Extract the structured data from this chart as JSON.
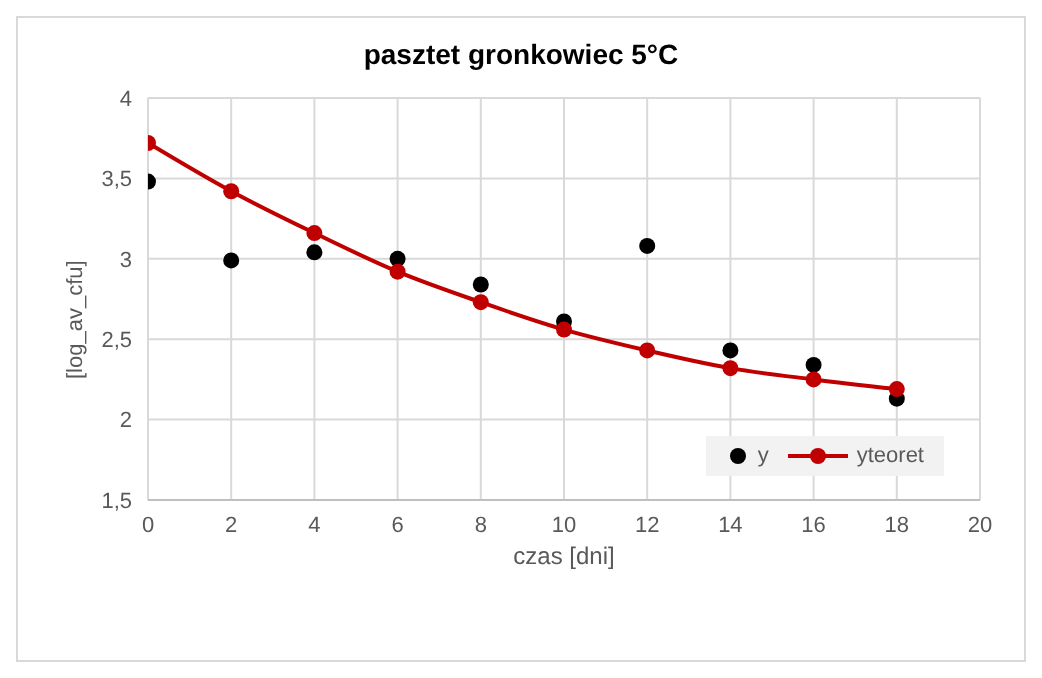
{
  "chart_data": {
    "type": "scatter",
    "title": "pasztet gronkowiec 5°C",
    "xlabel": "czas  [dni]",
    "ylabel": "[log_av_cfu]",
    "x": [
      0,
      2,
      4,
      6,
      8,
      10,
      12,
      14,
      16,
      18
    ],
    "series": [
      {
        "name": "y",
        "color": "#000000",
        "marker": "circle",
        "values": [
          3.48,
          2.99,
          3.04,
          3.0,
          2.84,
          2.61,
          3.08,
          2.43,
          2.34,
          2.13
        ]
      },
      {
        "name": "yteoret",
        "type": "line",
        "color": "#c00000",
        "marker": "circle",
        "line_style": "solid",
        "values": [
          3.72,
          3.42,
          3.16,
          2.92,
          2.73,
          2.56,
          2.43,
          2.32,
          2.25,
          2.19
        ]
      }
    ],
    "xlim": [
      0,
      20
    ],
    "xticks": [
      0,
      2,
      4,
      6,
      8,
      10,
      12,
      14,
      16,
      18,
      20
    ],
    "ylim": [
      1.5,
      4
    ],
    "yticks": [
      {
        "value": 1.5,
        "label": "1,5"
      },
      2,
      {
        "value": 2.5,
        "label": "2,5"
      },
      3,
      {
        "value": 3.5,
        "label": "3,5"
      },
      4
    ],
    "grid": true,
    "legend": "bottom right"
  }
}
